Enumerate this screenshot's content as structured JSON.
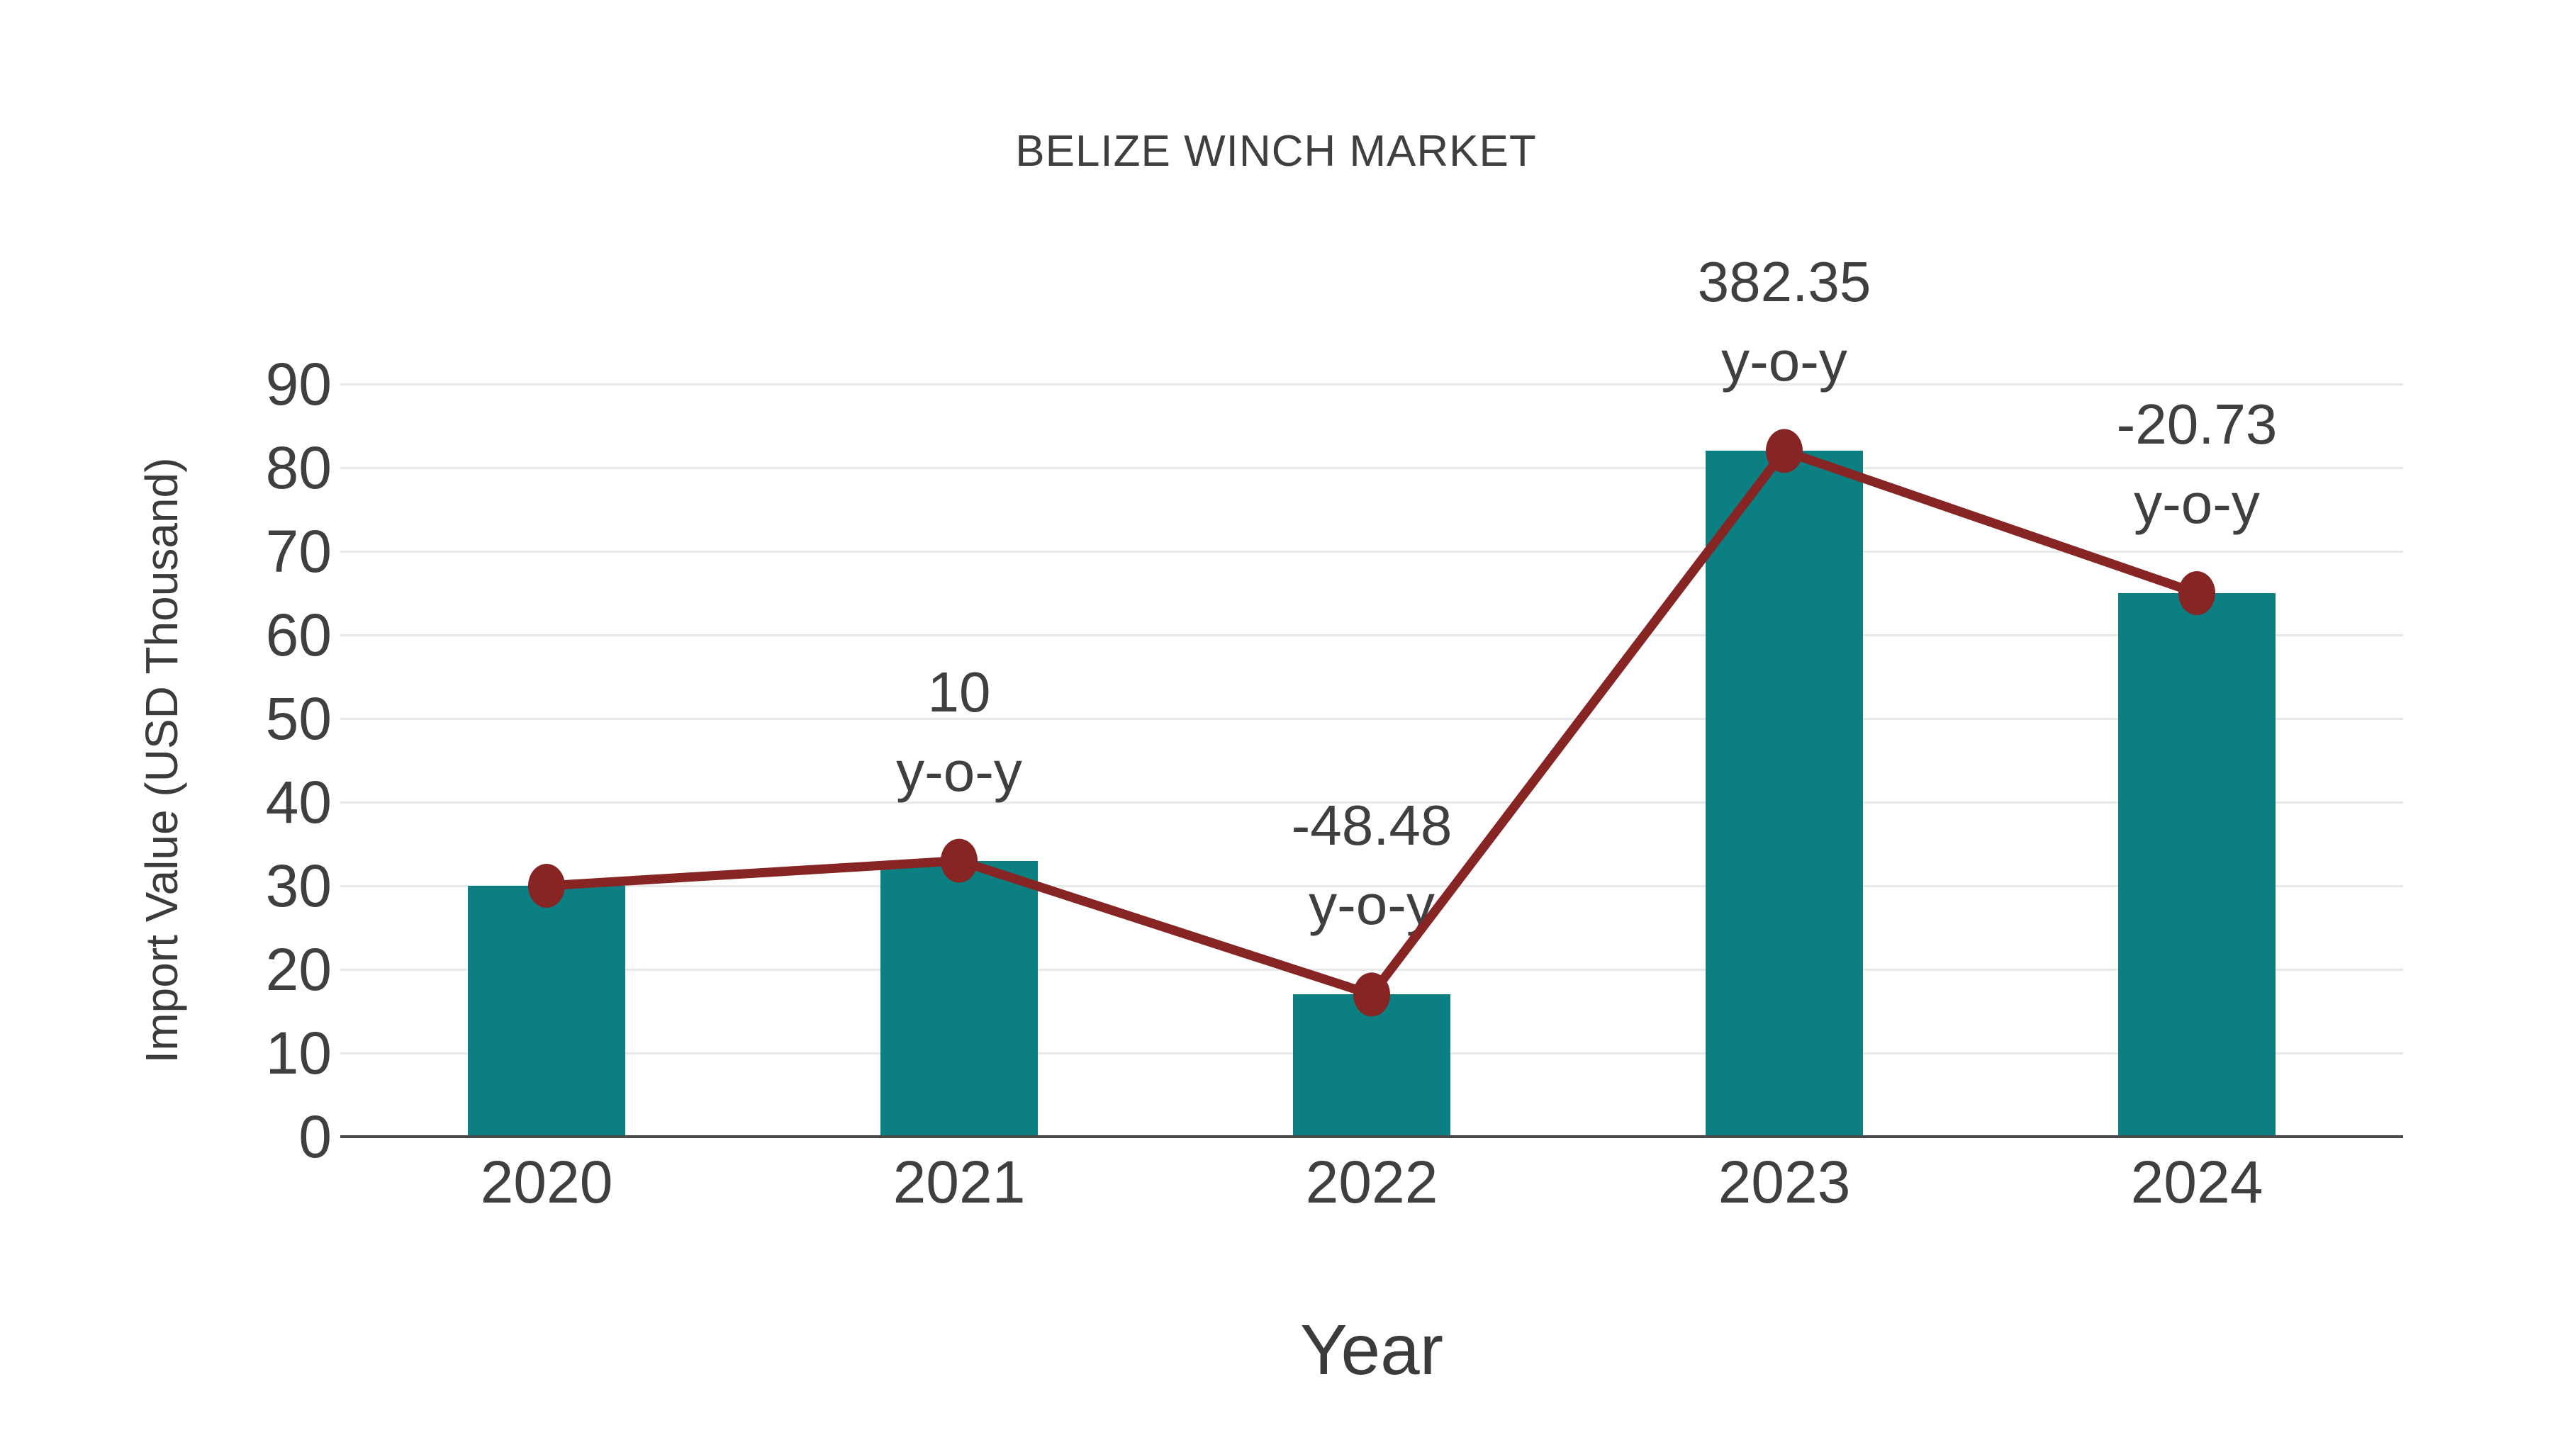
{
  "title": "BELIZE WINCH MARKET",
  "axes": {
    "x_label": "Year",
    "y_label": "Import Value (USD Thousand)"
  },
  "chart_data": {
    "type": "bar",
    "categories": [
      "2020",
      "2021",
      "2022",
      "2023",
      "2024"
    ],
    "series": [
      {
        "name": "import-value-bars",
        "type": "bar",
        "values": [
          30,
          33,
          17,
          82,
          65
        ]
      },
      {
        "name": "import-value-line",
        "type": "line",
        "values": [
          30,
          33,
          17,
          82,
          65
        ]
      }
    ],
    "annotations": [
      {
        "category": "2021",
        "value": "10",
        "suffix": "y-o-y"
      },
      {
        "category": "2022",
        "value": "-48.48",
        "suffix": "y-o-y"
      },
      {
        "category": "2023",
        "value": "382.35",
        "suffix": "y-o-y"
      },
      {
        "category": "2024",
        "value": "-20.73",
        "suffix": "y-o-y"
      }
    ],
    "y_ticks": [
      0,
      10,
      20,
      30,
      40,
      50,
      60,
      70,
      80,
      90
    ],
    "ylim": [
      0,
      95
    ],
    "grid": "horizontal",
    "legend": "none",
    "title": "BELIZE WINCH MARKET",
    "xlabel": "Year",
    "ylabel": "Import Value (USD Thousand)",
    "colors": {
      "bar": "#0b7f81",
      "line": "#872424",
      "marker": "#872424",
      "grid": "#e9e9e9",
      "axis": "#4a4a4a",
      "text": "#3f3f3f"
    }
  }
}
